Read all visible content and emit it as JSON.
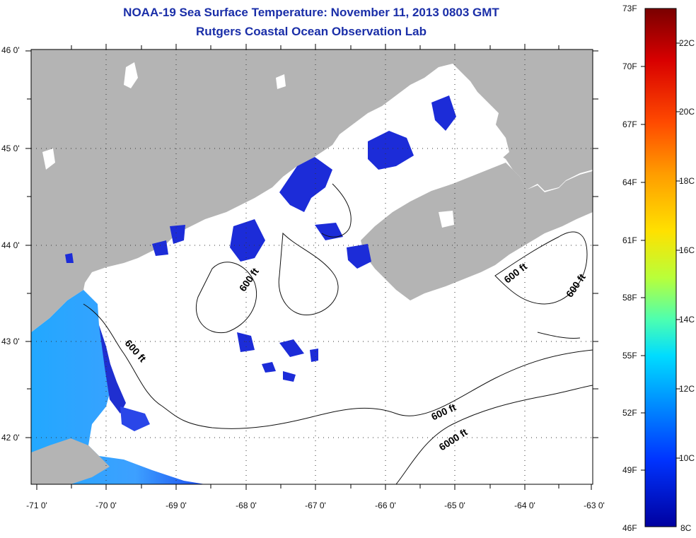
{
  "title": "NOAA-19 Sea Surface Temperature:  November 11, 2013 0803 GMT",
  "subtitle": "Rutgers Coastal Ocean Observation Lab",
  "lat_ticks": [
    "46 0'",
    "45 0'",
    "44 0'",
    "43 0'",
    "42 0'"
  ],
  "lon_ticks": [
    "-71 0'",
    "-70 0'",
    "-69 0'",
    "-68 0'",
    "-67 0'",
    "-66 0'",
    "-65 0'",
    "-64 0'",
    "-63 0'"
  ],
  "contour_labels": [
    "600 ft",
    "600 ft",
    "600 ft",
    "600 ft",
    "600 ft",
    "6000 ft"
  ],
  "colorbar": {
    "fahrenheit": [
      "73F",
      "70F",
      "67F",
      "64F",
      "61F",
      "58F",
      "55F",
      "52F",
      "49F",
      "46F"
    ],
    "celsius": [
      "22C",
      "20C",
      "18C",
      "16C",
      "14C",
      "12C",
      "10C",
      "8C"
    ],
    "colors": [
      "#7a0000",
      "#d80000",
      "#ff4a00",
      "#ff9d00",
      "#ffe100",
      "#b8ff3a",
      "#4dffb0",
      "#00dcff",
      "#0090ff",
      "#0034ff",
      "#0000a0"
    ]
  },
  "colors": {
    "land": "#b4b4b4",
    "title": "#1a2ea8",
    "ocean_no_data": "#ffffff"
  }
}
